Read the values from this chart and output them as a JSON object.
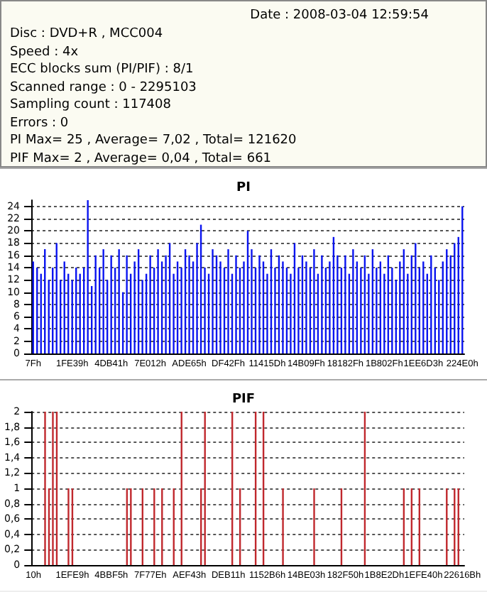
{
  "chart_data": [
    {
      "type": "other",
      "annotations": [
        "Date : 2008-03-04 12:59:54",
        "Disc : DVD+R , MCC004",
        "Speed : 4x",
        "ECC blocks sum (PI/PIF) : 8/1",
        "Scanned range : 0 - 2295103",
        "Sampling count : 117408",
        "Errors : 0",
        "PI Max= 25 , Average= 7,02 , Total= 121620",
        "PIF Max= 2 , Average= 0,04 , Total= 661"
      ]
    },
    {
      "type": "bar",
      "title": "PI",
      "color": "#0a14f0",
      "grid": "y",
      "ylim": [
        0,
        25
      ],
      "yticks": [
        0,
        2,
        4,
        6,
        8,
        10,
        12,
        14,
        16,
        18,
        20,
        22,
        24
      ],
      "categories": [
        "7Fh",
        null,
        null,
        null,
        null,
        null,
        null,
        null,
        null,
        null,
        "1FE39h",
        null,
        null,
        null,
        null,
        null,
        null,
        null,
        null,
        null,
        "4DB41h",
        null,
        null,
        null,
        null,
        null,
        null,
        null,
        null,
        null,
        "7E012h",
        null,
        null,
        null,
        null,
        null,
        null,
        null,
        null,
        null,
        "ADE65h",
        null,
        null,
        null,
        null,
        null,
        null,
        null,
        null,
        null,
        "DF42Fh",
        null,
        null,
        null,
        null,
        null,
        null,
        null,
        null,
        null,
        "11415Dh",
        null,
        null,
        null,
        null,
        null,
        null,
        null,
        null,
        null,
        "14B09Fh",
        null,
        null,
        null,
        null,
        null,
        null,
        null,
        null,
        null,
        "18182Fh",
        null,
        null,
        null,
        null,
        null,
        null,
        null,
        null,
        null,
        "1B802Fh",
        null,
        null,
        null,
        null,
        null,
        null,
        null,
        null,
        null,
        "1EE6D3h",
        null,
        null,
        null,
        null,
        null,
        null,
        null,
        null,
        null,
        "224E0h"
      ],
      "values": [
        15,
        14,
        13,
        17,
        12,
        14,
        18,
        12,
        15,
        13,
        12,
        14,
        13,
        14,
        25,
        11,
        16,
        14,
        17,
        12,
        16,
        14,
        17,
        10,
        16,
        13,
        15,
        17,
        12,
        13,
        16,
        14,
        17,
        15,
        16,
        18,
        13,
        15,
        14,
        17,
        16,
        15,
        18,
        21,
        14,
        13,
        17,
        16,
        15,
        14,
        17,
        13,
        16,
        14,
        15,
        20,
        17,
        14,
        16,
        15,
        13,
        17,
        14,
        16,
        15,
        14,
        13,
        18,
        14,
        16,
        15,
        14,
        17,
        13,
        16,
        14,
        15,
        19,
        16,
        14,
        16,
        13,
        17,
        15,
        14,
        16,
        13,
        17,
        14,
        15,
        13,
        16,
        14,
        12,
        15,
        17,
        13,
        16,
        18,
        14,
        15,
        13,
        16,
        14,
        12,
        15,
        17,
        16,
        18,
        19,
        24
      ]
    },
    {
      "type": "bar",
      "title": "PIF",
      "color": "#c0282d",
      "grid": "y",
      "ylim": [
        0,
        2
      ],
      "yticks": [
        0,
        {
          "value": 0.2,
          "label": "0,2"
        },
        {
          "value": 0.4,
          "label": "0,4"
        },
        {
          "value": 0.6,
          "label": "0,6"
        },
        {
          "value": 0.8,
          "label": "0,8"
        },
        1,
        {
          "value": 1.2,
          "label": "1,2"
        },
        {
          "value": 1.4,
          "label": "1,4"
        },
        {
          "value": 1.6,
          "label": "1,6"
        },
        {
          "value": 1.8,
          "label": "1,8"
        },
        2
      ],
      "categories": [
        "10h",
        null,
        null,
        null,
        null,
        null,
        null,
        null,
        null,
        null,
        "1EFE9h",
        null,
        null,
        null,
        null,
        null,
        null,
        null,
        null,
        null,
        "4BBF5h",
        null,
        null,
        null,
        null,
        null,
        null,
        null,
        null,
        null,
        "7F77Eh",
        null,
        null,
        null,
        null,
        null,
        null,
        null,
        null,
        null,
        "AEF43h",
        null,
        null,
        null,
        null,
        null,
        null,
        null,
        null,
        null,
        "DEB11h",
        null,
        null,
        null,
        null,
        null,
        null,
        null,
        null,
        null,
        "1152B6h",
        null,
        null,
        null,
        null,
        null,
        null,
        null,
        null,
        null,
        "14BE03h",
        null,
        null,
        null,
        null,
        null,
        null,
        null,
        null,
        null,
        "182F50h",
        null,
        null,
        null,
        null,
        null,
        null,
        null,
        null,
        null,
        "1B8E2Dh",
        null,
        null,
        null,
        null,
        null,
        null,
        null,
        null,
        null,
        "1EFE40h",
        null,
        null,
        null,
        null,
        null,
        null,
        null,
        null,
        null,
        "22616Bh"
      ],
      "values": [
        0,
        0,
        0,
        2,
        1,
        2,
        2,
        0,
        0,
        1,
        1,
        0,
        0,
        0,
        0,
        0,
        0,
        0,
        0,
        0,
        0,
        0,
        0,
        0,
        1,
        1,
        0,
        0,
        1,
        0,
        0,
        1,
        0,
        1,
        0,
        0,
        1,
        0,
        2,
        0,
        0,
        0,
        0,
        1,
        2,
        0,
        0,
        0,
        0,
        0,
        0,
        2,
        0,
        1,
        0,
        0,
        0,
        2,
        0,
        2,
        0,
        0,
        0,
        0,
        1,
        0,
        0,
        0,
        0,
        0,
        0,
        0,
        1,
        0,
        0,
        0,
        0,
        0,
        0,
        1,
        0,
        0,
        0,
        0,
        0,
        2,
        0,
        0,
        0,
        0,
        0,
        0,
        0,
        0,
        0,
        1,
        0,
        1,
        0,
        1,
        0,
        0,
        0,
        0,
        0,
        0,
        1,
        0,
        1,
        1,
        0
      ]
    }
  ]
}
